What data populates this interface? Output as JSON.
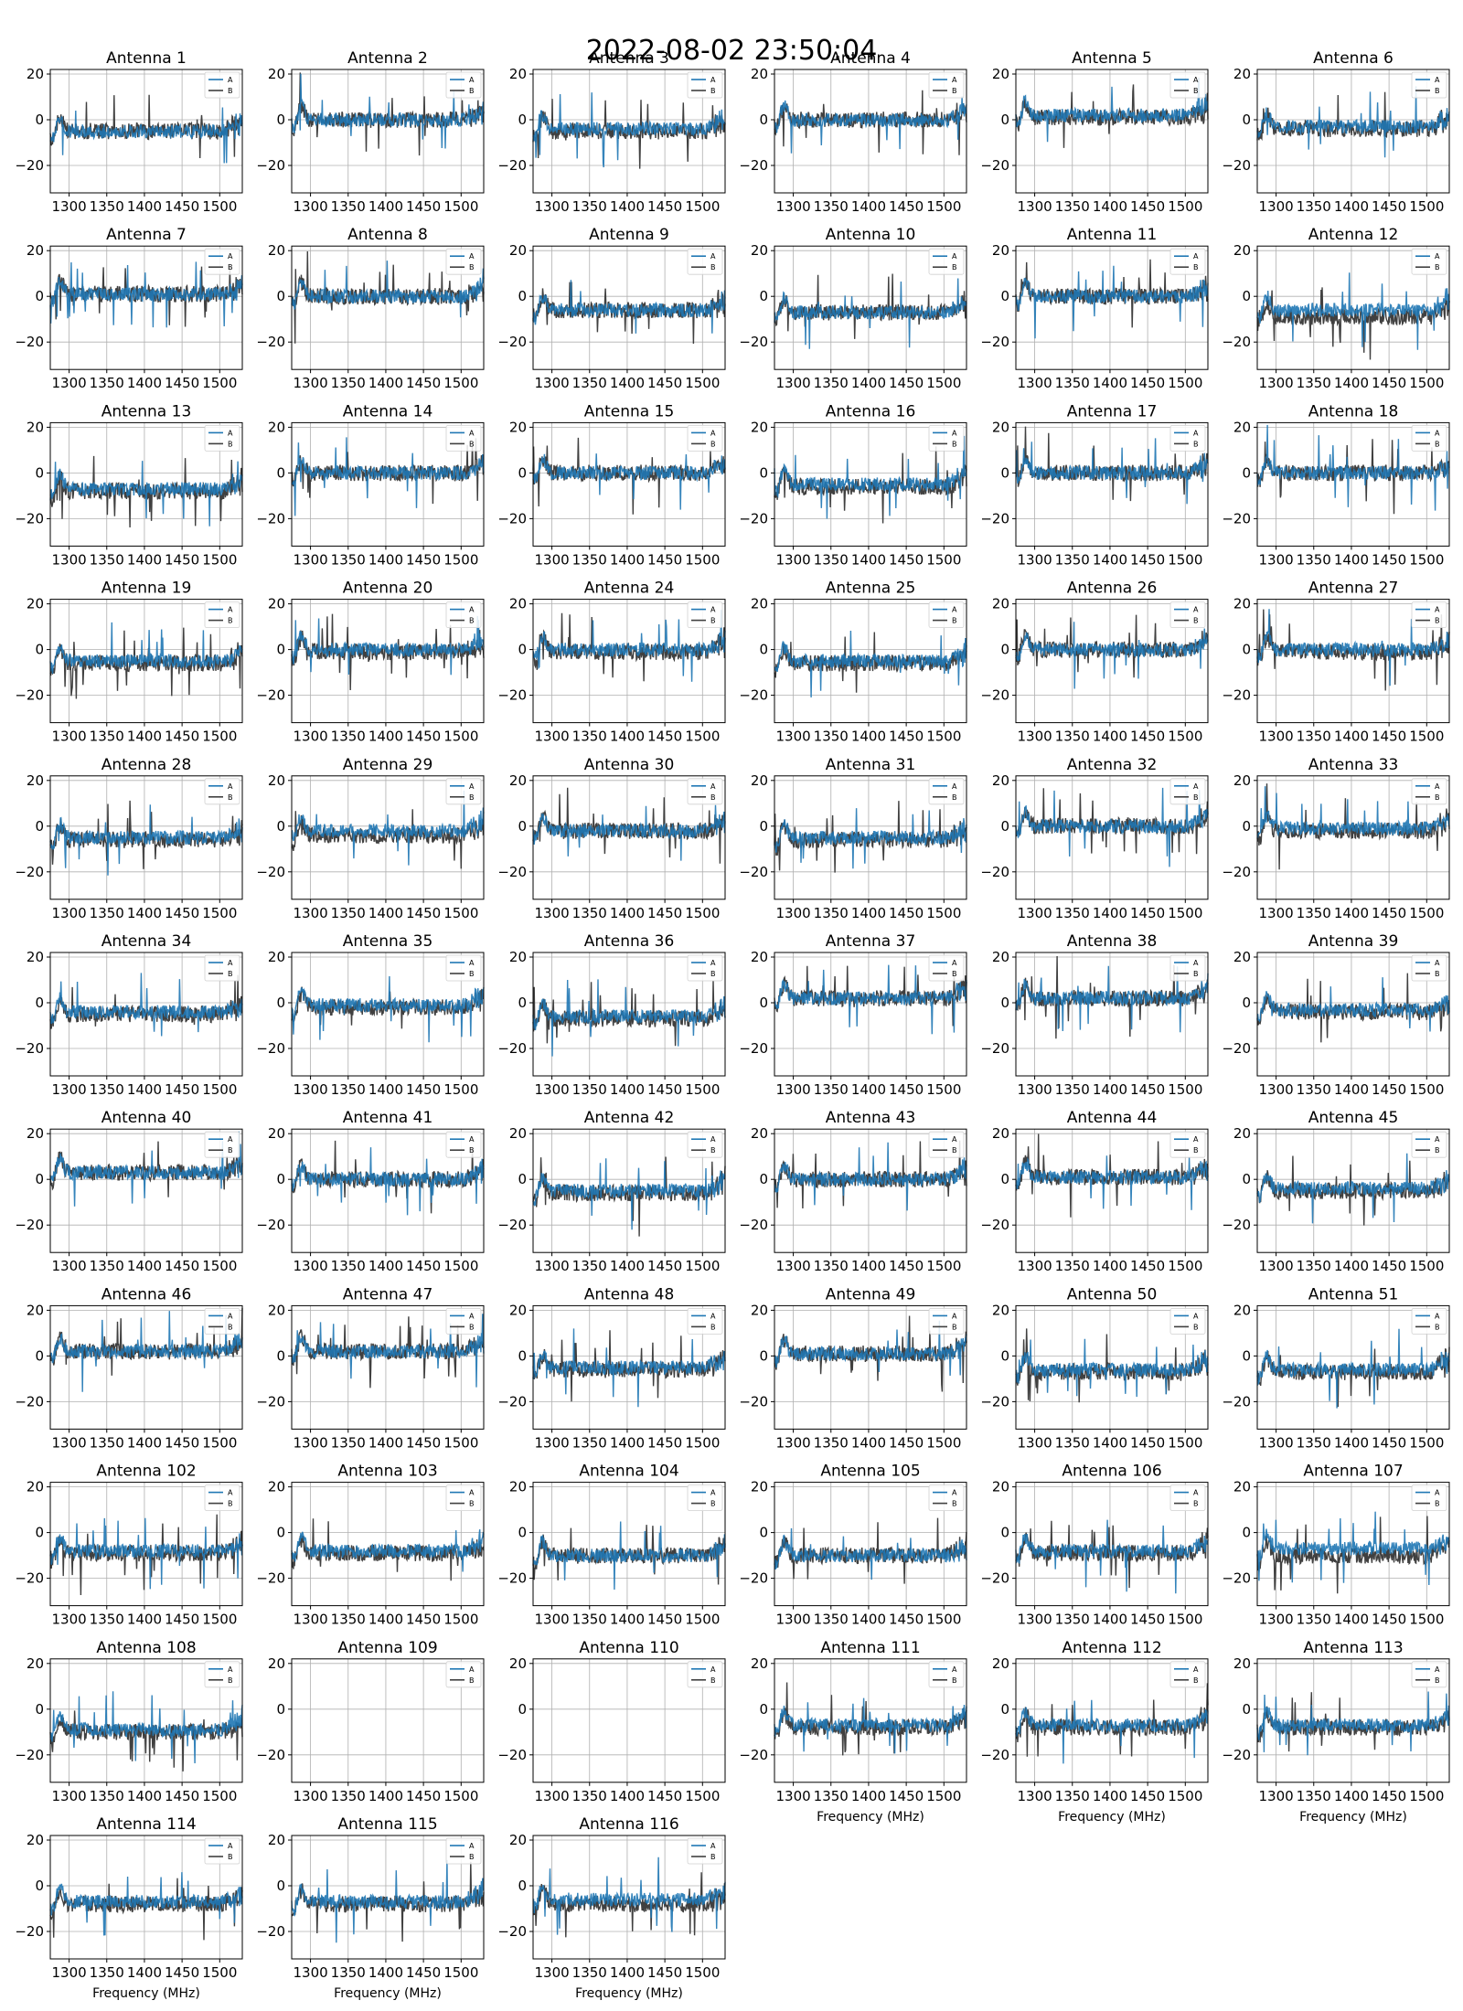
{
  "figure_title": "2022-08-02 23:50:04",
  "colors": {
    "A": "#1f77b4",
    "B": "#404040",
    "grid": "#b0b0b0"
  },
  "chart_data": {
    "type": "line",
    "grid": true,
    "legend_placement": "top-right",
    "legend_entries": [
      "A",
      "B"
    ],
    "xlabel": "Frequency (MHz)",
    "xlim": [
      1275,
      1530
    ],
    "ylim": [
      -32,
      22
    ],
    "xticks": [
      1300,
      1350,
      1400,
      1450,
      1500
    ],
    "yticks": [
      20,
      0,
      -20
    ],
    "panels": [
      {
        "title": "Antenna 1",
        "a_level": -5,
        "b_level": -5,
        "has_data": true
      },
      {
        "title": "Antenna 2",
        "a_level": 0,
        "b_level": 0,
        "has_data": true
      },
      {
        "title": "Antenna 3",
        "a_level": -4,
        "b_level": -5,
        "has_data": true
      },
      {
        "title": "Antenna 4",
        "a_level": 0,
        "b_level": 0,
        "has_data": true
      },
      {
        "title": "Antenna 5",
        "a_level": 2,
        "b_level": 1,
        "has_data": true
      },
      {
        "title": "Antenna 6",
        "a_level": -3,
        "b_level": -4,
        "has_data": true
      },
      {
        "title": "Antenna 7",
        "a_level": 1,
        "b_level": 1,
        "has_data": true
      },
      {
        "title": "Antenna 8",
        "a_level": 0,
        "b_level": 0,
        "has_data": true
      },
      {
        "title": "Antenna 9",
        "a_level": -6,
        "b_level": -6,
        "has_data": true
      },
      {
        "title": "Antenna 10",
        "a_level": -7,
        "b_level": -7,
        "has_data": true
      },
      {
        "title": "Antenna 11",
        "a_level": 0,
        "b_level": 0,
        "has_data": true
      },
      {
        "title": "Antenna 12",
        "a_level": -6,
        "b_level": -9,
        "has_data": true
      },
      {
        "title": "Antenna 13",
        "a_level": -7,
        "b_level": -8,
        "has_data": true
      },
      {
        "title": "Antenna 14",
        "a_level": 0,
        "b_level": 0,
        "has_data": true
      },
      {
        "title": "Antenna 15",
        "a_level": 0,
        "b_level": 0,
        "has_data": true
      },
      {
        "title": "Antenna 16",
        "a_level": -5,
        "b_level": -6,
        "has_data": true
      },
      {
        "title": "Antenna 17",
        "a_level": 0,
        "b_level": 0,
        "has_data": true
      },
      {
        "title": "Antenna 18",
        "a_level": 0,
        "b_level": 0,
        "has_data": true
      },
      {
        "title": "Antenna 19",
        "a_level": -5,
        "b_level": -6,
        "has_data": true
      },
      {
        "title": "Antenna 20",
        "a_level": 0,
        "b_level": -1,
        "has_data": true
      },
      {
        "title": "Antenna 24",
        "a_level": 0,
        "b_level": -1,
        "has_data": true
      },
      {
        "title": "Antenna 25",
        "a_level": -5,
        "b_level": -6,
        "has_data": true
      },
      {
        "title": "Antenna 26",
        "a_level": 0,
        "b_level": 0,
        "has_data": true
      },
      {
        "title": "Antenna 27",
        "a_level": 0,
        "b_level": -1,
        "has_data": true
      },
      {
        "title": "Antenna 28",
        "a_level": -5,
        "b_level": -6,
        "has_data": true
      },
      {
        "title": "Antenna 29",
        "a_level": -2,
        "b_level": -4,
        "has_data": true
      },
      {
        "title": "Antenna 30",
        "a_level": -2,
        "b_level": -2,
        "has_data": true
      },
      {
        "title": "Antenna 31",
        "a_level": -5,
        "b_level": -6,
        "has_data": true
      },
      {
        "title": "Antenna 32",
        "a_level": 0,
        "b_level": 0,
        "has_data": true
      },
      {
        "title": "Antenna 33",
        "a_level": -1,
        "b_level": -2,
        "has_data": true
      },
      {
        "title": "Antenna 34",
        "a_level": -4,
        "b_level": -5,
        "has_data": true
      },
      {
        "title": "Antenna 35",
        "a_level": -1,
        "b_level": -2,
        "has_data": true
      },
      {
        "title": "Antenna 36",
        "a_level": -6,
        "b_level": -7,
        "has_data": true
      },
      {
        "title": "Antenna 37",
        "a_level": 2,
        "b_level": 2,
        "has_data": true
      },
      {
        "title": "Antenna 38",
        "a_level": 2,
        "b_level": 2,
        "has_data": true
      },
      {
        "title": "Antenna 39",
        "a_level": -3,
        "b_level": -4,
        "has_data": true
      },
      {
        "title": "Antenna 40",
        "a_level": 3,
        "b_level": 3,
        "has_data": true
      },
      {
        "title": "Antenna 41",
        "a_level": 0,
        "b_level": 0,
        "has_data": true
      },
      {
        "title": "Antenna 42",
        "a_level": -5,
        "b_level": -6,
        "has_data": true
      },
      {
        "title": "Antenna 43",
        "a_level": 0,
        "b_level": 0,
        "has_data": true
      },
      {
        "title": "Antenna 44",
        "a_level": 1,
        "b_level": 1,
        "has_data": true
      },
      {
        "title": "Antenna 45",
        "a_level": -4,
        "b_level": -5,
        "has_data": true
      },
      {
        "title": "Antenna 46",
        "a_level": 2,
        "b_level": 2,
        "has_data": true
      },
      {
        "title": "Antenna 47",
        "a_level": 2,
        "b_level": 2,
        "has_data": true
      },
      {
        "title": "Antenna 48",
        "a_level": -5,
        "b_level": -6,
        "has_data": true
      },
      {
        "title": "Antenna 49",
        "a_level": 1,
        "b_level": 1,
        "has_data": true
      },
      {
        "title": "Antenna 50",
        "a_level": -6,
        "b_level": -7,
        "has_data": true
      },
      {
        "title": "Antenna 51",
        "a_level": -6,
        "b_level": -7,
        "has_data": true
      },
      {
        "title": "Antenna 102",
        "a_level": -8,
        "b_level": -9,
        "has_data": true
      },
      {
        "title": "Antenna 103",
        "a_level": -8,
        "b_level": -9,
        "has_data": true
      },
      {
        "title": "Antenna 104",
        "a_level": -10,
        "b_level": -10,
        "has_data": true
      },
      {
        "title": "Antenna 105",
        "a_level": -10,
        "b_level": -10,
        "has_data": true
      },
      {
        "title": "Antenna 106",
        "a_level": -8,
        "b_level": -9,
        "has_data": true
      },
      {
        "title": "Antenna 107",
        "a_level": -7,
        "b_level": -10,
        "has_data": true
      },
      {
        "title": "Antenna 108",
        "a_level": -9,
        "b_level": -10,
        "has_data": true
      },
      {
        "title": "Antenna 109",
        "a_level": 0,
        "b_level": 0,
        "has_data": false
      },
      {
        "title": "Antenna 110",
        "a_level": 0,
        "b_level": 0,
        "has_data": false
      },
      {
        "title": "Antenna 111",
        "a_level": -7,
        "b_level": -8,
        "has_data": true
      },
      {
        "title": "Antenna 112",
        "a_level": -7,
        "b_level": -8,
        "has_data": true
      },
      {
        "title": "Antenna 113",
        "a_level": -7,
        "b_level": -8,
        "has_data": true
      },
      {
        "title": "Antenna 114",
        "a_level": -7,
        "b_level": -8,
        "has_data": true
      },
      {
        "title": "Antenna 115",
        "a_level": -7,
        "b_level": -8,
        "has_data": true
      },
      {
        "title": "Antenna 116",
        "a_level": -6,
        "b_level": -8,
        "has_data": true
      }
    ]
  }
}
